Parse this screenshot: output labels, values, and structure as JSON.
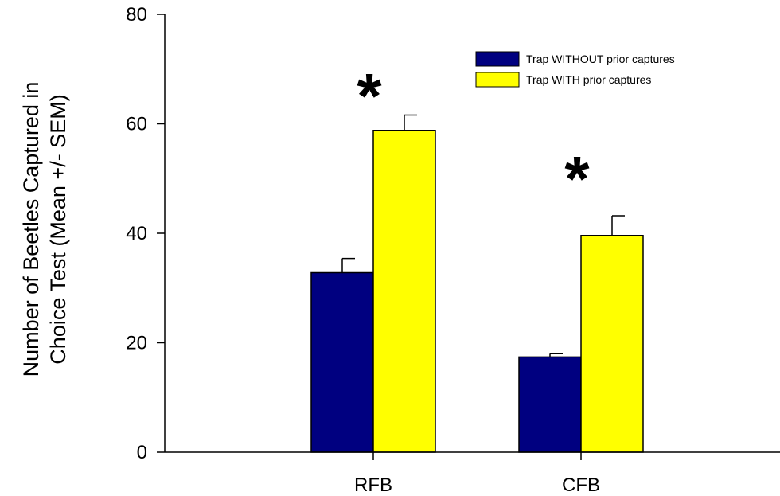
{
  "chart_data": {
    "type": "bar",
    "categories": [
      "RFB",
      "CFB"
    ],
    "ylabel_lines": [
      "Number of Beetles Captured in",
      "Choice Test (Mean +/- SEM)"
    ],
    "ylim": [
      0,
      80
    ],
    "yticks": [
      0,
      20,
      40,
      60,
      80
    ],
    "grid": false,
    "legend_position": "top-right",
    "series": [
      {
        "name": "Trap WITHOUT prior captures",
        "color": "#000080",
        "values": [
          32.8,
          17.4
        ],
        "errors": [
          2.6,
          0.6
        ]
      },
      {
        "name": "Trap WITH prior captures",
        "color": "#ffff00",
        "values": [
          58.8,
          39.6
        ],
        "errors": [
          2.8,
          3.6
        ]
      }
    ],
    "annotations": [
      {
        "category": "RFB",
        "text": "*"
      },
      {
        "category": "CFB",
        "text": "*"
      }
    ]
  }
}
